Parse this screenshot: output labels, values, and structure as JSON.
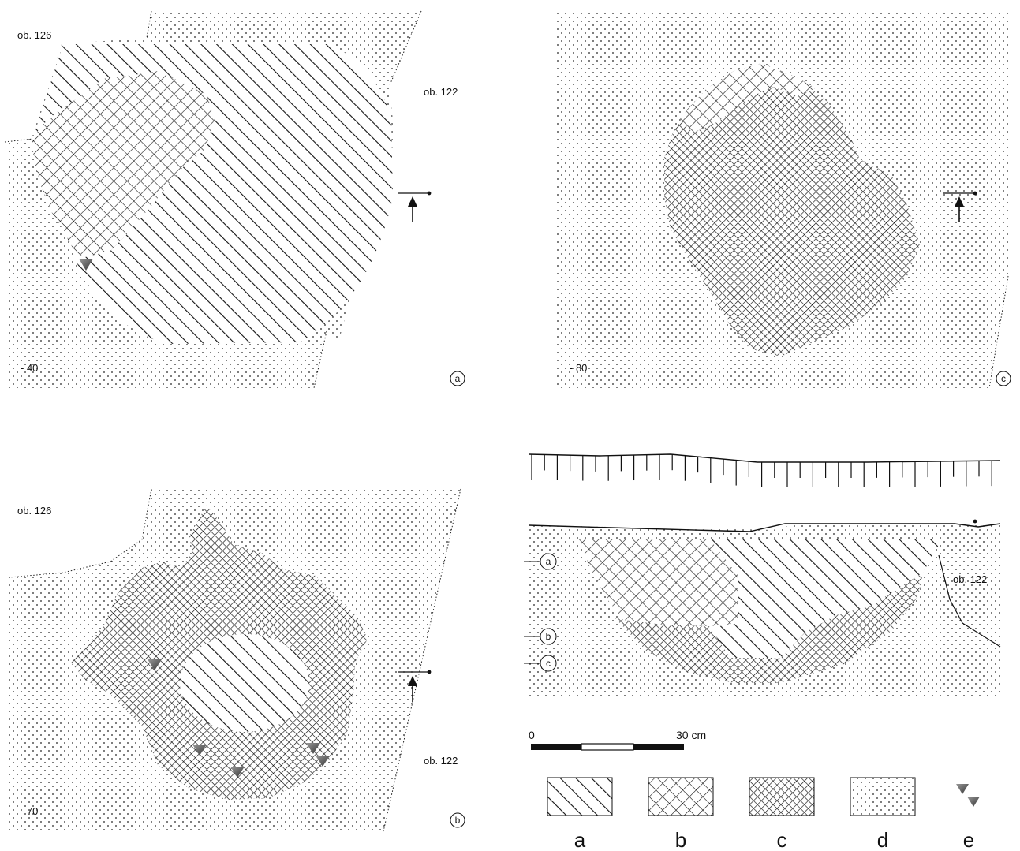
{
  "panels": {
    "a": {
      "label_top": "ob. 126",
      "label_right": "ob. 122",
      "depth": "- 40",
      "marker": "a"
    },
    "c": {
      "depth": "- 80",
      "marker": "c"
    },
    "b": {
      "label_top": "ob. 126",
      "label_right": "ob. 122",
      "depth": "- 70",
      "marker": "b"
    },
    "section": {
      "label_right": "ob. 122",
      "levels": [
        "a",
        "b",
        "c"
      ]
    }
  },
  "scale": {
    "start": "0",
    "end": "30 cm"
  },
  "legend": [
    {
      "key": "a",
      "pattern": "hatch"
    },
    {
      "key": "b",
      "pattern": "crosshatch-wide"
    },
    {
      "key": "c",
      "pattern": "crosshatch-dense"
    },
    {
      "key": "d",
      "pattern": "dots"
    },
    {
      "key": "e",
      "pattern": "triangles"
    }
  ]
}
